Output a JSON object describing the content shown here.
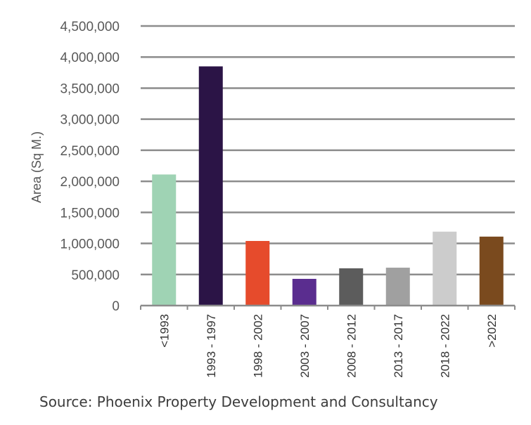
{
  "chart_data": {
    "type": "bar",
    "categories": [
      "<1993",
      "1993 - 1997",
      "1998 - 2002",
      "2003 - 2007",
      "2008 - 2012",
      "2013 - 2017",
      "2018 - 2022",
      ">2022"
    ],
    "values": [
      2110000,
      3850000,
      1040000,
      430000,
      600000,
      610000,
      1190000,
      1110000
    ],
    "colors": [
      "#9fd3b4",
      "#2b1446",
      "#e64b2c",
      "#5a2d8f",
      "#5c5c5c",
      "#a0a0a0",
      "#cccccc",
      "#7a4a1e"
    ],
    "ylabel": "Area (Sq M.)",
    "xlabel": "",
    "title": "",
    "ylim": [
      0,
      4500000
    ],
    "yticks": [
      0,
      500000,
      1000000,
      1500000,
      2000000,
      2500000,
      3000000,
      3500000,
      4000000,
      4500000
    ],
    "ytick_labels": [
      "0",
      "500,000",
      "1,000,000",
      "1,500,000",
      "2,000,000",
      "2,500,000",
      "3,000,000",
      "3,500,000",
      "4,000,000",
      "4,500,000"
    ],
    "grid": true,
    "legend": "none"
  },
  "source": "Source: Phoenix Property Development and Consultancy"
}
